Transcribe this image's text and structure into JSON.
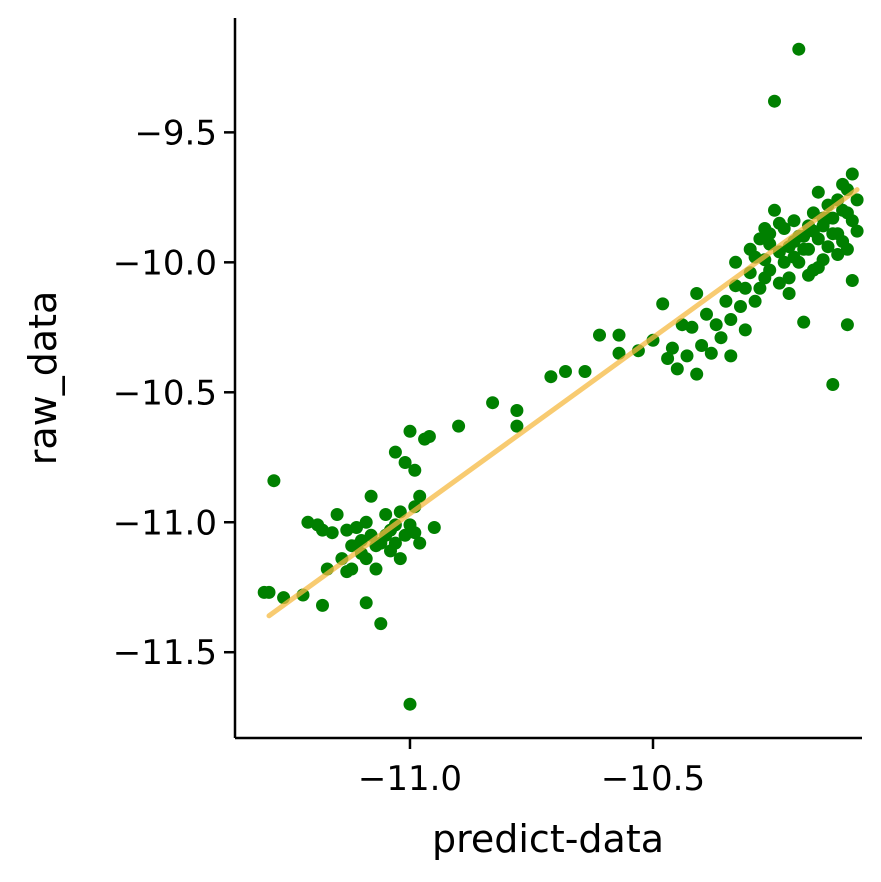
{
  "chart_data": {
    "type": "scatter",
    "title": "",
    "xlabel": "predict-data",
    "ylabel": "raw_data",
    "xlim": [
      -11.36,
      -10.07
    ],
    "ylim": [
      -11.83,
      -9.06
    ],
    "xticks": [
      -11.0,
      -10.5
    ],
    "xtick_labels": [
      "−11.0",
      "−10.5"
    ],
    "yticks": [
      -9.5,
      -10.0,
      -10.5,
      -11.0,
      -11.5
    ],
    "ytick_labels": [
      "−9.5",
      "−10.0",
      "−10.5",
      "−11.0",
      "−11.5"
    ],
    "grid": false,
    "legend": "none",
    "point_color": "#008000",
    "fit_line_color": "#f5b942",
    "fit_line": {
      "x": [
        -11.29,
        -10.08
      ],
      "y": [
        -11.36,
        -9.72
      ]
    },
    "points": [
      [
        -11.3,
        -11.27
      ],
      [
        -11.29,
        -11.27
      ],
      [
        -11.28,
        -10.84
      ],
      [
        -11.26,
        -11.29
      ],
      [
        -11.22,
        -11.28
      ],
      [
        -11.21,
        -11.0
      ],
      [
        -11.19,
        -11.01
      ],
      [
        -11.18,
        -11.03
      ],
      [
        -11.18,
        -11.32
      ],
      [
        -11.17,
        -11.18
      ],
      [
        -11.16,
        -11.04
      ],
      [
        -11.15,
        -10.97
      ],
      [
        -11.14,
        -11.14
      ],
      [
        -11.13,
        -11.03
      ],
      [
        -11.12,
        -11.09
      ],
      [
        -11.12,
        -11.18
      ],
      [
        -11.11,
        -11.02
      ],
      [
        -11.1,
        -11.07
      ],
      [
        -11.1,
        -11.12
      ],
      [
        -11.09,
        -11.0
      ],
      [
        -11.09,
        -11.31
      ],
      [
        -11.08,
        -10.9
      ],
      [
        -11.08,
        -11.05
      ],
      [
        -11.07,
        -11.18
      ],
      [
        -11.06,
        -11.08
      ],
      [
        -11.06,
        -11.39
      ],
      [
        -11.05,
        -10.97
      ],
      [
        -11.04,
        -11.11
      ],
      [
        -11.04,
        -11.03
      ],
      [
        -11.03,
        -10.73
      ],
      [
        -11.03,
        -11.08
      ],
      [
        -11.02,
        -10.96
      ],
      [
        -11.02,
        -11.14
      ],
      [
        -11.01,
        -11.05
      ],
      [
        -11.01,
        -10.77
      ],
      [
        -11.0,
        -10.65
      ],
      [
        -11.0,
        -11.01
      ],
      [
        -10.99,
        -10.8
      ],
      [
        -10.99,
        -11.04
      ],
      [
        -10.98,
        -11.08
      ],
      [
        -10.98,
        -10.9
      ],
      [
        -10.97,
        -10.68
      ],
      [
        -10.96,
        -10.67
      ],
      [
        -10.95,
        -11.02
      ],
      [
        -10.9,
        -10.63
      ],
      [
        -10.83,
        -10.54
      ],
      [
        -10.78,
        -10.63
      ],
      [
        -10.78,
        -10.57
      ],
      [
        -10.71,
        -10.44
      ],
      [
        -10.68,
        -10.42
      ],
      [
        -10.64,
        -10.42
      ],
      [
        -10.61,
        -10.28
      ],
      [
        -10.57,
        -10.28
      ],
      [
        -10.57,
        -10.35
      ],
      [
        -10.53,
        -10.34
      ],
      [
        -10.5,
        -10.3
      ],
      [
        -10.48,
        -10.16
      ],
      [
        -10.47,
        -10.37
      ],
      [
        -10.46,
        -10.33
      ],
      [
        -10.45,
        -10.41
      ],
      [
        -10.44,
        -10.24
      ],
      [
        -10.43,
        -10.36
      ],
      [
        -10.42,
        -10.25
      ],
      [
        -10.41,
        -10.43
      ],
      [
        -10.41,
        -10.12
      ],
      [
        -10.4,
        -10.32
      ],
      [
        -10.39,
        -10.2
      ],
      [
        -10.38,
        -10.35
      ],
      [
        -10.37,
        -10.24
      ],
      [
        -10.36,
        -10.29
      ],
      [
        -10.35,
        -10.15
      ],
      [
        -10.34,
        -10.22
      ],
      [
        -10.34,
        -10.36
      ],
      [
        -10.33,
        -10.09
      ],
      [
        -10.32,
        -10.17
      ],
      [
        -10.31,
        -10.26
      ],
      [
        -10.3,
        -10.04
      ],
      [
        -10.29,
        -9.98
      ],
      [
        -10.29,
        -10.15
      ],
      [
        -10.28,
        -9.91
      ],
      [
        -10.27,
        -10.06
      ],
      [
        -10.27,
        -9.87
      ],
      [
        -10.26,
        -9.93
      ],
      [
        -10.26,
        -10.03
      ],
      [
        -10.25,
        -9.8
      ],
      [
        -10.25,
        -9.38
      ],
      [
        -10.24,
        -9.96
      ],
      [
        -10.24,
        -10.08
      ],
      [
        -10.23,
        -9.87
      ],
      [
        -10.22,
        -9.94
      ],
      [
        -10.22,
        -10.12
      ],
      [
        -10.21,
        -9.84
      ],
      [
        -10.21,
        -9.98
      ],
      [
        -10.2,
        -9.18
      ],
      [
        -10.2,
        -10.0
      ],
      [
        -10.19,
        -10.23
      ],
      [
        -10.19,
        -9.9
      ],
      [
        -10.18,
        -9.86
      ],
      [
        -10.18,
        -9.95
      ],
      [
        -10.17,
        -9.81
      ],
      [
        -10.17,
        -10.03
      ],
      [
        -10.16,
        -9.91
      ],
      [
        -10.16,
        -9.73
      ],
      [
        -10.15,
        -9.99
      ],
      [
        -10.15,
        -9.86
      ],
      [
        -10.14,
        -9.78
      ],
      [
        -10.14,
        -9.94
      ],
      [
        -10.13,
        -9.83
      ],
      [
        -10.13,
        -10.47
      ],
      [
        -10.12,
        -9.89
      ],
      [
        -10.12,
        -9.76
      ],
      [
        -10.11,
        -9.8
      ],
      [
        -10.11,
        -9.92
      ],
      [
        -10.1,
        -10.24
      ],
      [
        -10.1,
        -9.72
      ],
      [
        -10.09,
        -9.84
      ],
      [
        -10.09,
        -9.66
      ],
      [
        -10.09,
        -10.07
      ],
      [
        -10.08,
        -9.76
      ],
      [
        -10.08,
        -9.88
      ],
      [
        -10.33,
        -10.0
      ],
      [
        -10.3,
        -9.95
      ],
      [
        -10.28,
        -10.1
      ],
      [
        -10.26,
        -9.89
      ],
      [
        -10.23,
        -10.0
      ],
      [
        -10.2,
        -9.9
      ],
      [
        -10.18,
        -10.05
      ],
      [
        -10.15,
        -9.83
      ],
      [
        -10.12,
        -9.97
      ],
      [
        -10.1,
        -9.81
      ],
      [
        -10.31,
        -10.1
      ],
      [
        -10.24,
        -9.85
      ],
      [
        -10.22,
        -10.06
      ],
      [
        -10.19,
        -9.95
      ],
      [
        -10.16,
        -10.02
      ],
      [
        -10.13,
        -9.89
      ],
      [
        -10.11,
        -9.7
      ],
      [
        -10.27,
        -9.99
      ],
      [
        -10.21,
        -9.92
      ],
      [
        -10.17,
        -9.88
      ],
      [
        -10.14,
        -9.83
      ],
      [
        -10.1,
        -9.95
      ],
      [
        -11.0,
        -11.7
      ],
      [
        -11.07,
        -11.09
      ],
      [
        -11.11,
        -11.09
      ],
      [
        -11.05,
        -11.05
      ],
      [
        -11.09,
        -11.14
      ],
      [
        -11.03,
        -11.01
      ],
      [
        -10.99,
        -10.94
      ],
      [
        -11.13,
        -11.19
      ]
    ]
  }
}
